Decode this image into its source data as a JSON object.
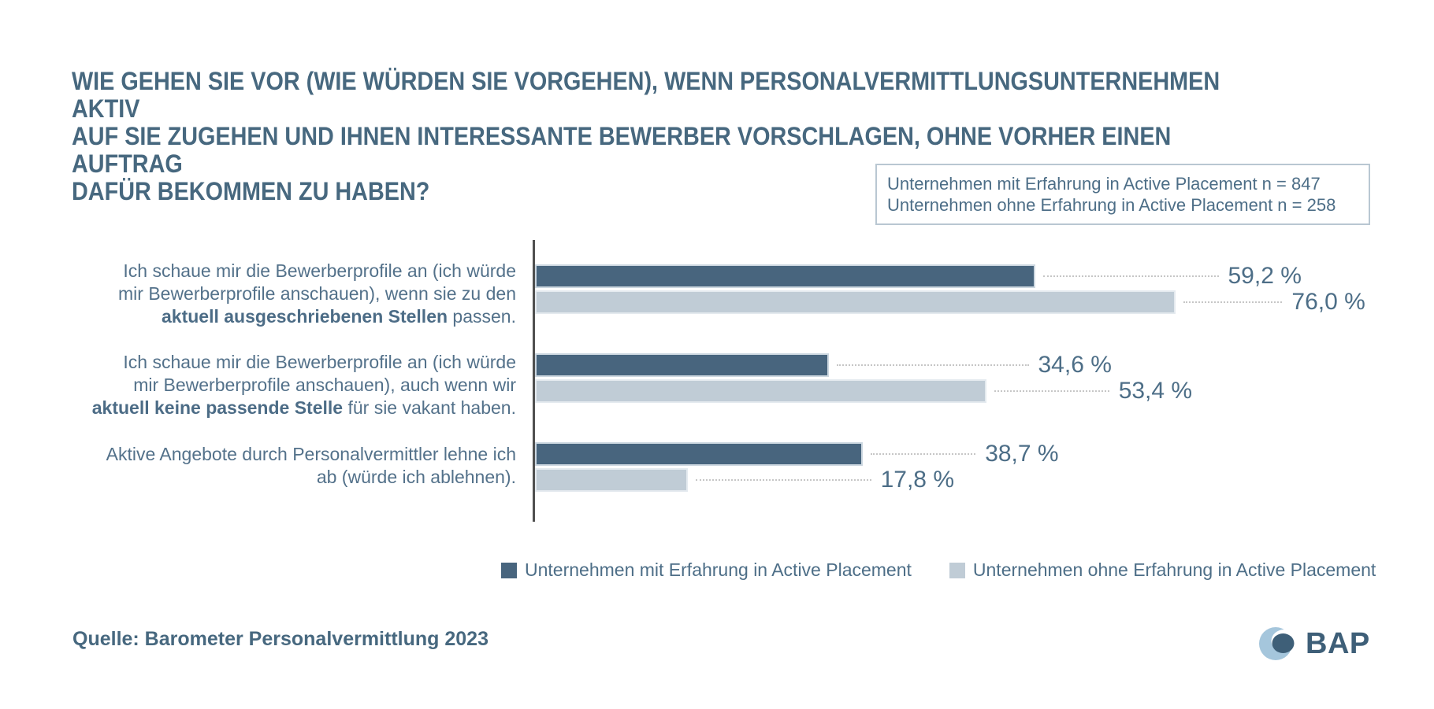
{
  "title": "WIE GEHEN SIE VOR (WIE WÜRDEN SIE VORGEHEN), WENN PERSONALVERMITTLUNGSUNTERNEHMEN AKTIV\nAUF SIE ZUGEHEN UND IHNEN INTERESSANTE BEWERBER VORSCHLAGEN, OHNE VORHER EINEN AUFTRAG\nDAFÜR BEKOMMEN ZU HABEN?",
  "sample_box": {
    "line1": "Unternehmen mit Erfahrung in Active Placement n = 847",
    "line2": "Unternehmen ohne Erfahrung in Active Placement n = 258"
  },
  "chart_data": {
    "type": "bar",
    "orientation": "horizontal",
    "unit": "%",
    "xlim": [
      0,
      80
    ],
    "grid": false,
    "legend_position": "bottom",
    "categories": [
      "Ich schaue mir die Bewerberprofile an (ich würde mir Bewerberprofile anschauen), wenn sie zu den aktuell ausgeschriebenen Stellen passen.",
      "Ich schaue mir die Bewerberprofile an (ich würde mir Bewerberprofile anschauen), auch wenn wir aktuell keine passende Stelle für sie vakant haben.",
      "Aktive Angebote durch Personalvermittler lehne ich ab (würde ich ablehnen)."
    ],
    "series": [
      {
        "name": "Unternehmen mit Erfahrung in Active Placement",
        "n": 847,
        "color": "#48657E",
        "values": [
          59.2,
          34.6,
          38.7
        ]
      },
      {
        "name": "Unternehmen ohne Erfahrung in Active Placement",
        "n": 258,
        "color": "#C0CCD6",
        "values": [
          76.0,
          53.4,
          17.8
        ]
      }
    ],
    "value_labels": [
      [
        "59,2 %",
        "76,0 %"
      ],
      [
        "34,6 %",
        "53,4 %"
      ],
      [
        "38,7 %",
        "17,8 %"
      ]
    ]
  },
  "rows": [
    {
      "label_lines": [
        "Ich schaue mir die Bewerberprofile an (ich würde",
        "mir Bewerberprofile anschauen), wenn sie zu den"
      ],
      "label_bold": "aktuell ausgeschriebenen Stellen",
      "label_rest": " passen.",
      "mit_value": 59.2,
      "ohne_value": 76.0,
      "mit_label": "59,2 %",
      "ohne_label": "76,0 %"
    },
    {
      "label_lines": [
        "Ich schaue mir die Bewerberprofile an (ich würde",
        "mir Bewerberprofile anschauen), auch wenn wir"
      ],
      "label_bold": "aktuell keine passende Stelle",
      "label_rest": " für sie vakant haben.",
      "mit_value": 34.6,
      "ohne_value": 53.4,
      "mit_label": "34,6 %",
      "ohne_label": "53,4 %"
    },
    {
      "label_lines": [
        "Aktive Angebote durch Personalvermittler lehne ich",
        "ab (würde ich ablehnen)."
      ],
      "label_bold": "",
      "label_rest": "",
      "mit_value": 38.7,
      "ohne_value": 17.8,
      "mit_label": "38,7 %",
      "ohne_label": "17,8 %"
    }
  ],
  "legend": {
    "items": [
      {
        "label": "Unternehmen mit Erfahrung in Active Placement",
        "color": "#48657E"
      },
      {
        "label": "Unternehmen ohne Erfahrung in Active Placement",
        "color": "#C0CCD6"
      }
    ]
  },
  "source": "Quelle: Barometer Personalvermittlung 2023",
  "logo": {
    "text": "BAP",
    "colors": {
      "light": "#A5C6DC",
      "dark": "#3E5F78"
    }
  }
}
